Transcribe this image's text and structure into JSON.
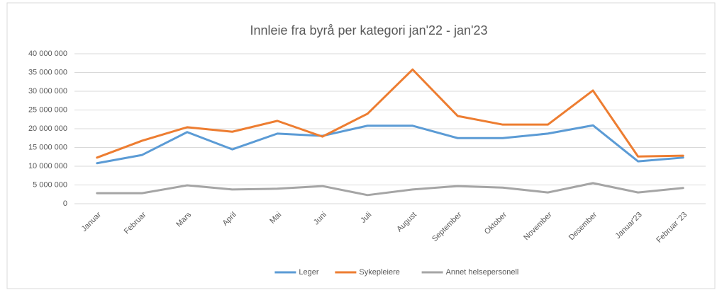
{
  "chart_data": {
    "type": "line",
    "title": "Innleie fra byrå per kategori jan'22 - jan'23",
    "categories": [
      "Januar",
      "Februar",
      "Mars",
      "April",
      "Mai",
      "Juni",
      "Juli",
      "August",
      "September",
      "Oktober",
      "November",
      "Desember",
      "Januar'23",
      "Februar '23"
    ],
    "series": [
      {
        "name": "Leger",
        "color": "#5b9bd5",
        "values": [
          10800000,
          13000000,
          19100000,
          14500000,
          18700000,
          18100000,
          20800000,
          20800000,
          17500000,
          17500000,
          18700000,
          20900000,
          11300000,
          12300000
        ]
      },
      {
        "name": "Sykepleiere",
        "color": "#ed7d31",
        "values": [
          12300000,
          16800000,
          20400000,
          19200000,
          22100000,
          17900000,
          24000000,
          35800000,
          23400000,
          21100000,
          21100000,
          30200000,
          12600000,
          12800000
        ]
      },
      {
        "name": "Annet helsepersonell",
        "color": "#a5a5a5",
        "values": [
          2800000,
          2800000,
          4900000,
          3800000,
          4000000,
          4700000,
          2300000,
          3800000,
          4700000,
          4300000,
          3000000,
          5500000,
          3000000,
          4200000
        ]
      }
    ],
    "ylim": [
      0,
      40000000
    ],
    "yticks": [
      0,
      {
        "value": 5000000,
        "label": "5 000 000"
      },
      {
        "value": 10000000,
        "label": "10 000 000"
      },
      {
        "value": 15000000,
        "label": "15 000 000"
      },
      {
        "value": 20000000,
        "label": "20 000 000"
      },
      {
        "value": 25000000,
        "label": "25 000 000"
      },
      {
        "value": 30000000,
        "label": "30 000 000"
      },
      {
        "value": 35000000,
        "label": "35 000 000"
      },
      {
        "value": 40000000,
        "label": "40 000 000"
      }
    ],
    "grid": true,
    "legend": "bottom"
  }
}
